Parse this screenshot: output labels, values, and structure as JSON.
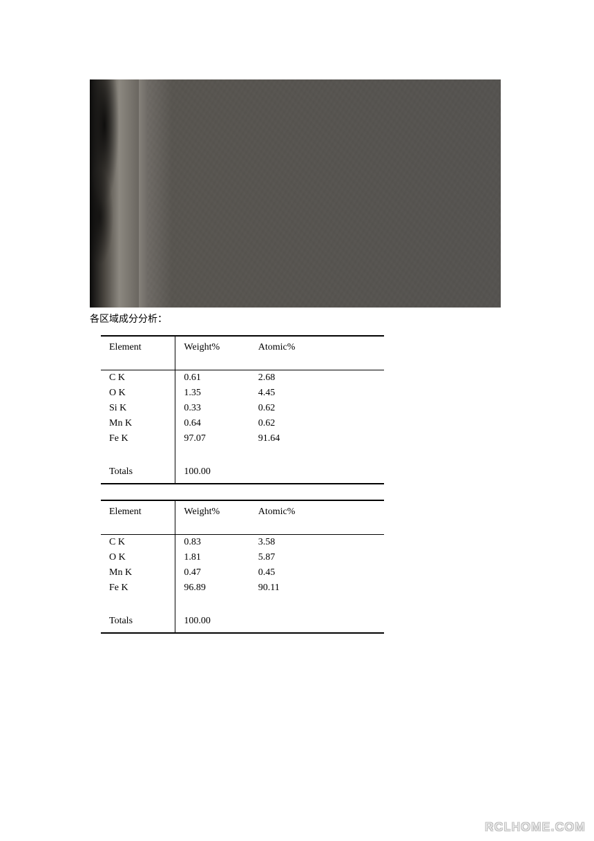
{
  "caption": "各区域成分分析：",
  "headers": {
    "element": "Element",
    "weight": "Weight%",
    "atomic": "Atomic%"
  },
  "totals_label": "Totals",
  "table1": {
    "rows": [
      {
        "el": "C K",
        "w": "0.61",
        "a": "2.68"
      },
      {
        "el": "O K",
        "w": "1.35",
        "a": "4.45"
      },
      {
        "el": "Si K",
        "w": "0.33",
        "a": "0.62"
      },
      {
        "el": "Mn K",
        "w": "0.64",
        "a": "0.62"
      },
      {
        "el": "Fe K",
        "w": "97.07",
        "a": "91.64"
      }
    ],
    "total_w": "100.00"
  },
  "table2": {
    "rows": [
      {
        "el": "C K",
        "w": "0.83",
        "a": "3.58"
      },
      {
        "el": "O K",
        "w": "1.81",
        "a": "5.87"
      },
      {
        "el": "Mn K",
        "w": "0.47",
        "a": "0.45"
      },
      {
        "el": "Fe K",
        "w": "96.89",
        "a": "90.11"
      }
    ],
    "total_w": "100.00"
  },
  "watermark": "RCLHOME.COM",
  "colors": {
    "page_bg": "#ffffff",
    "text": "#000000",
    "table_border": "#000000",
    "watermark_fill": "#efefef",
    "watermark_outline": "#bcbcbc"
  },
  "typography": {
    "body_font": "Times New Roman",
    "caption_font": "SimSun",
    "body_size_pt": 11,
    "caption_size_pt": 10
  }
}
